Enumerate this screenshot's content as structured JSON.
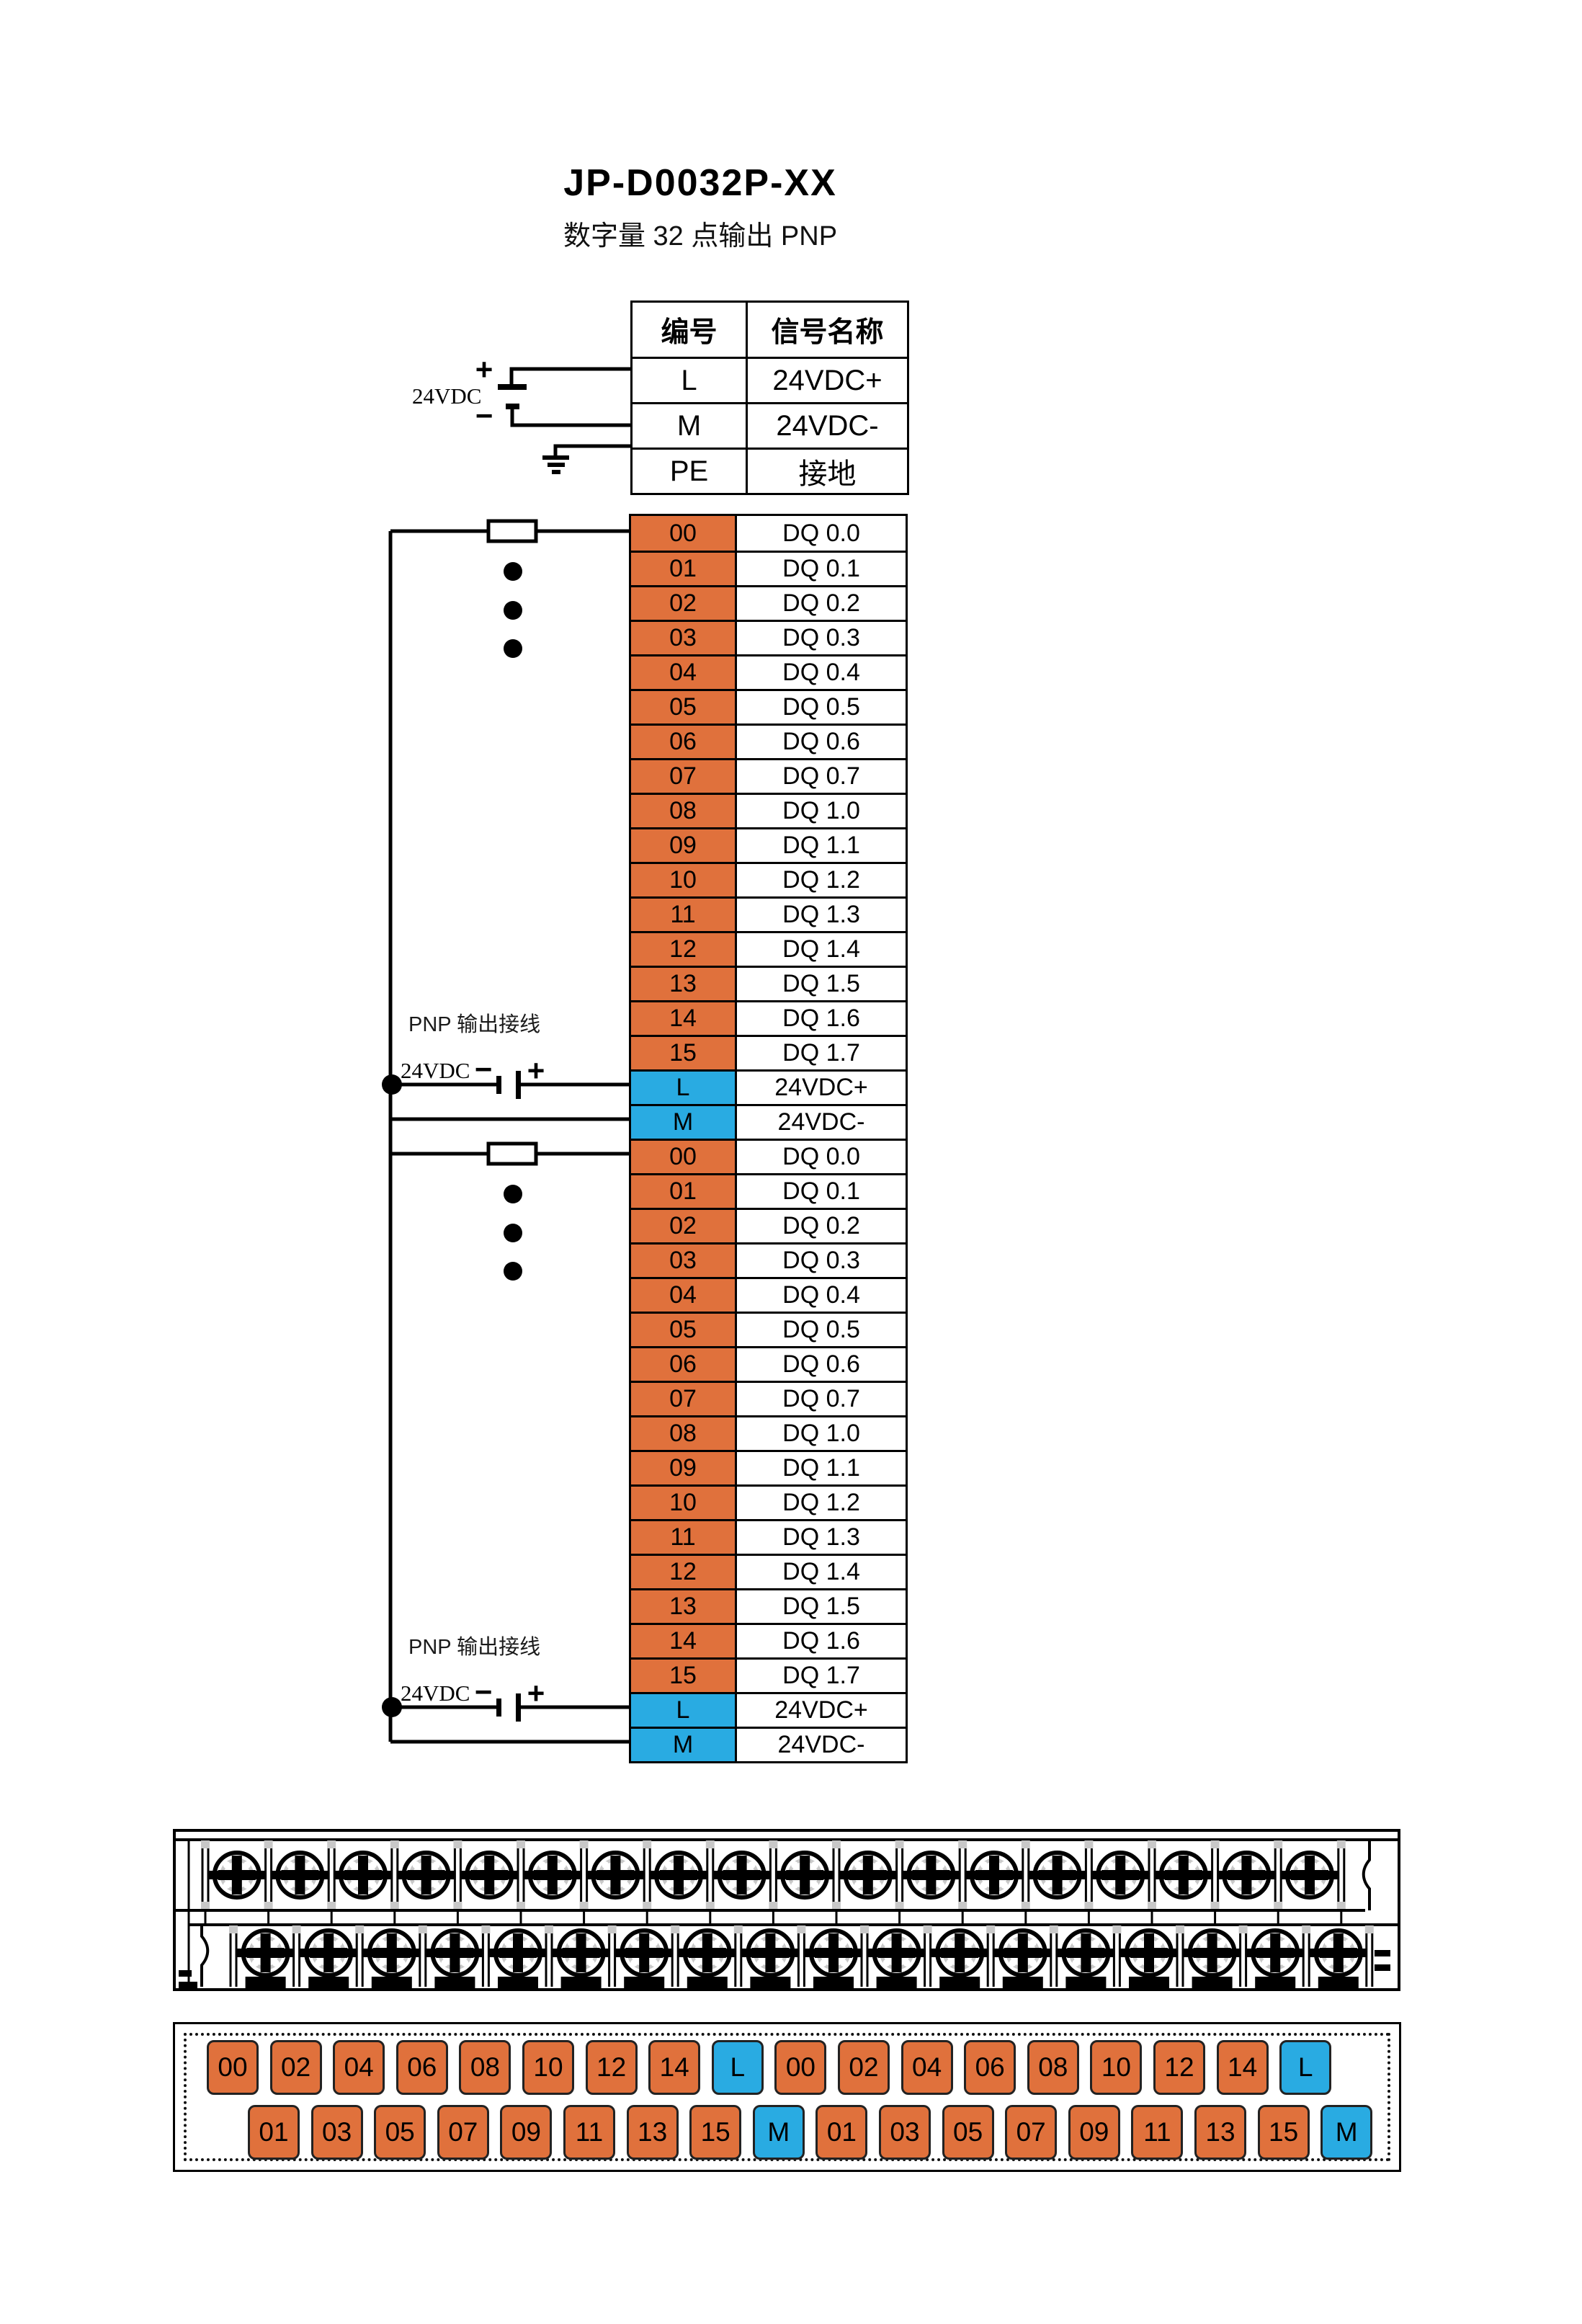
{
  "title": "JP-D0032P-XX",
  "subtitle": "数字量 32 点输出  PNP",
  "colors": {
    "orange": "#E0713C",
    "blue": "#29ABE2",
    "line": "#000000"
  },
  "power_diagram": {
    "supply_label": "24VDC",
    "plus": "+",
    "minus": "−"
  },
  "power_table": {
    "headers": [
      "编号",
      "信号名称"
    ],
    "rows": [
      [
        "L",
        "24VDC+"
      ],
      [
        "M",
        "24VDC-"
      ],
      [
        "PE",
        "接地"
      ]
    ]
  },
  "output_blocks": [
    {
      "pnp_label": "PNP 输出接线",
      "supply_label": "24VDC",
      "plus": "+",
      "minus": "−",
      "rows": [
        {
          "no": "00",
          "name": "DQ 0.0",
          "type": "orange"
        },
        {
          "no": "01",
          "name": "DQ 0.1",
          "type": "orange"
        },
        {
          "no": "02",
          "name": "DQ 0.2",
          "type": "orange"
        },
        {
          "no": "03",
          "name": "DQ 0.3",
          "type": "orange"
        },
        {
          "no": "04",
          "name": "DQ 0.4",
          "type": "orange"
        },
        {
          "no": "05",
          "name": "DQ 0.5",
          "type": "orange"
        },
        {
          "no": "06",
          "name": "DQ 0.6",
          "type": "orange"
        },
        {
          "no": "07",
          "name": "DQ 0.7",
          "type": "orange"
        },
        {
          "no": "08",
          "name": "DQ 1.0",
          "type": "orange"
        },
        {
          "no": "09",
          "name": "DQ 1.1",
          "type": "orange"
        },
        {
          "no": "10",
          "name": "DQ 1.2",
          "type": "orange"
        },
        {
          "no": "11",
          "name": "DQ 1.3",
          "type": "orange"
        },
        {
          "no": "12",
          "name": "DQ 1.4",
          "type": "orange"
        },
        {
          "no": "13",
          "name": "DQ 1.5",
          "type": "orange"
        },
        {
          "no": "14",
          "name": "DQ 1.6",
          "type": "orange"
        },
        {
          "no": "15",
          "name": "DQ 1.7",
          "type": "orange"
        },
        {
          "no": "L",
          "name": "24VDC+",
          "type": "blue"
        },
        {
          "no": "M",
          "name": "24VDC-",
          "type": "blue"
        }
      ]
    },
    {
      "pnp_label": "PNP 输出接线",
      "supply_label": "24VDC",
      "plus": "+",
      "minus": "−",
      "rows": [
        {
          "no": "00",
          "name": "DQ 0.0",
          "type": "orange"
        },
        {
          "no": "01",
          "name": "DQ 0.1",
          "type": "orange"
        },
        {
          "no": "02",
          "name": "DQ 0.2",
          "type": "orange"
        },
        {
          "no": "03",
          "name": "DQ 0.3",
          "type": "orange"
        },
        {
          "no": "04",
          "name": "DQ 0.4",
          "type": "orange"
        },
        {
          "no": "05",
          "name": "DQ 0.5",
          "type": "orange"
        },
        {
          "no": "06",
          "name": "DQ 0.6",
          "type": "orange"
        },
        {
          "no": "07",
          "name": "DQ 0.7",
          "type": "orange"
        },
        {
          "no": "08",
          "name": "DQ 1.0",
          "type": "orange"
        },
        {
          "no": "09",
          "name": "DQ 1.1",
          "type": "orange"
        },
        {
          "no": "10",
          "name": "DQ 1.2",
          "type": "orange"
        },
        {
          "no": "11",
          "name": "DQ 1.3",
          "type": "orange"
        },
        {
          "no": "12",
          "name": "DQ 1.4",
          "type": "orange"
        },
        {
          "no": "13",
          "name": "DQ 1.5",
          "type": "orange"
        },
        {
          "no": "14",
          "name": "DQ 1.6",
          "type": "orange"
        },
        {
          "no": "15",
          "name": "DQ 1.7",
          "type": "orange"
        },
        {
          "no": "L",
          "name": "24VDC+",
          "type": "blue"
        },
        {
          "no": "M",
          "name": "24VDC-",
          "type": "blue"
        }
      ]
    }
  ],
  "terminal_map": {
    "top_row": [
      "00",
      "02",
      "04",
      "06",
      "08",
      "10",
      "12",
      "14",
      "L",
      "00",
      "02",
      "04",
      "06",
      "08",
      "10",
      "12",
      "14",
      "L"
    ],
    "bottom_row": [
      "01",
      "03",
      "05",
      "07",
      "09",
      "11",
      "13",
      "15",
      "M",
      "01",
      "03",
      "05",
      "07",
      "09",
      "11",
      "13",
      "15",
      "M"
    ]
  },
  "terminal_strip": {
    "top_screws": 18,
    "bottom_screws": 18
  }
}
